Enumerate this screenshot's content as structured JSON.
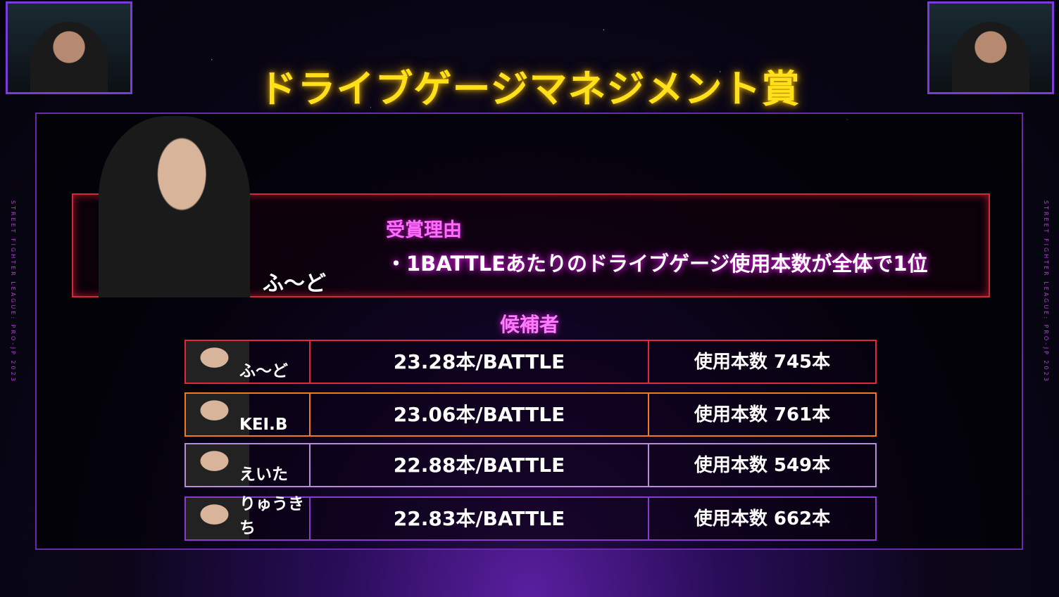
{
  "title": "ドライブゲージマネジメント賞",
  "side_text": "STREET FIGHTER LEAGUE: PRO-JP 2023",
  "winner": {
    "name": "ふ〜ど",
    "reason_heading": "受賞理由",
    "reason": "・1BATTLEあたりのドライブゲージ使用本数が全体で1位"
  },
  "candidates_heading": "候補者",
  "candidates": [
    {
      "name": "ふ〜ど",
      "rate": "23.28本/BATTLE",
      "used": "使用本数 745本",
      "color": "#e0283a"
    },
    {
      "name": "KEI.B",
      "rate": "23.06本/BATTLE",
      "used": "使用本数 761本",
      "color": "#f07a20"
    },
    {
      "name": "えいた",
      "rate": "22.88本/BATTLE",
      "used": "使用本数 549本",
      "color": "#b88ad8"
    },
    {
      "name": "りゅうきち",
      "rate": "22.83本/BATTLE",
      "used": "使用本数 662本",
      "color": "#8a3ad0"
    }
  ]
}
